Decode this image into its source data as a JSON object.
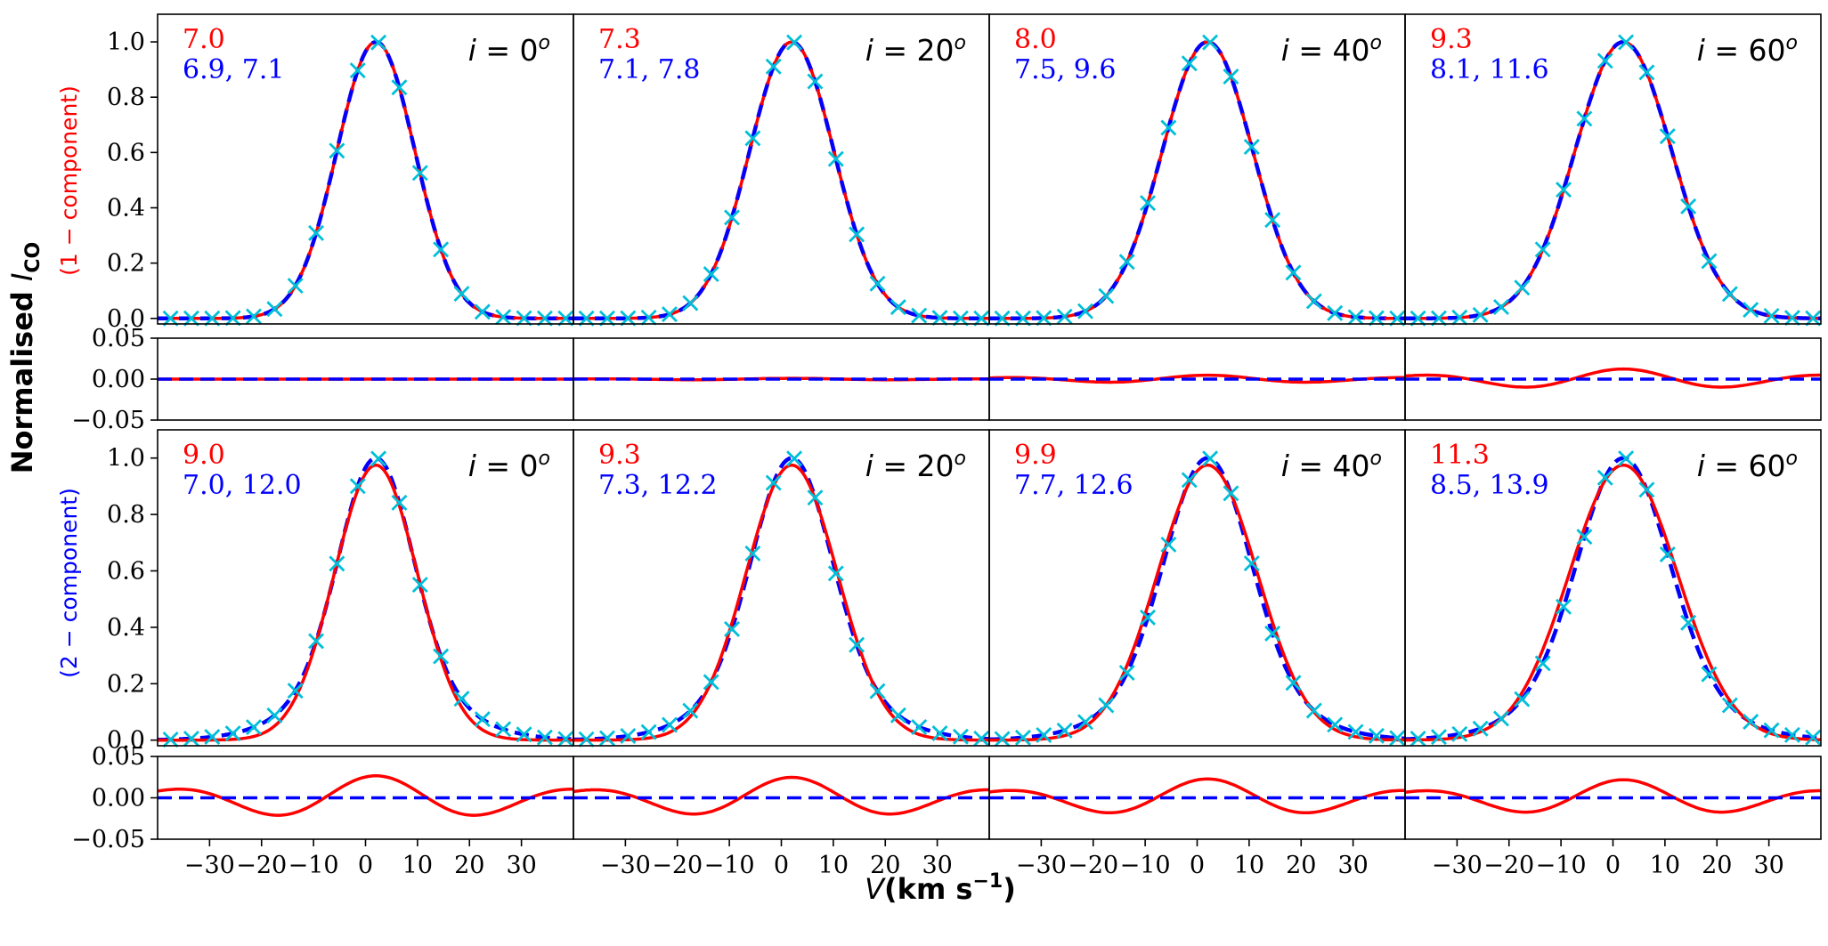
{
  "figure": {
    "ylabel": "Normalised I_CO",
    "ylabel_main": "Normalised ",
    "ylabel_var": "I",
    "ylabel_sub": "CO",
    "xlabel_var": "V",
    "xlabel_units": "(km s",
    "xlabel_exp": "−1",
    "xlabel_close": ")",
    "row_label_top": "(1 − component)",
    "row_label_bottom": "(2 − component)",
    "colors": {
      "red": "#ff0000",
      "blue": "#0000ff",
      "cyan": "#00bfd8",
      "axis": "#000000"
    }
  },
  "chart_data": {
    "type": "line",
    "layout": "4 rows x 4 columns, shared x-axis",
    "xlim": [
      -40,
      40
    ],
    "xticks": [
      -30,
      -20,
      -10,
      0,
      10,
      20,
      30
    ],
    "profile_ylim": [
      -0.02,
      1.1
    ],
    "profile_yticks": [
      "0.0",
      "0.2",
      "0.4",
      "0.6",
      "0.8",
      "1.0"
    ],
    "residual_ylim": [
      -0.05,
      0.05
    ],
    "residual_yticks": [
      "0.05",
      "0.00",
      "−0.05"
    ],
    "line_center": 2,
    "series": [
      {
        "name": "data",
        "marker": "x",
        "color": "#00bfd8"
      },
      {
        "name": "1-component fit",
        "style": "solid",
        "color": "#ff0000"
      },
      {
        "name": "2-component fit",
        "style": "dashed",
        "color": "#0000ff"
      }
    ],
    "columns": [
      {
        "inclination": "0",
        "one_comp": {
          "red": "7.0",
          "blue": "6.9,  7.1"
        },
        "two_comp": {
          "red": "9.0",
          "blue": "7.0, 12.0"
        },
        "one_comp_residual_amp": 0.0,
        "two_comp_residual_amp": 0.028
      },
      {
        "inclination": "20",
        "one_comp": {
          "red": "7.3",
          "blue": "7.1,  7.8"
        },
        "two_comp": {
          "red": "9.3",
          "blue": "7.3, 12.2"
        },
        "one_comp_residual_amp": 0.001,
        "two_comp_residual_amp": 0.026
      },
      {
        "inclination": "40",
        "one_comp": {
          "red": "8.0",
          "blue": "7.5,  9.6"
        },
        "two_comp": {
          "red": "9.9",
          "blue": "7.7, 12.6"
        },
        "one_comp_residual_amp": 0.005,
        "two_comp_residual_amp": 0.024
      },
      {
        "inclination": "60",
        "one_comp": {
          "red": "9.3",
          "blue": "8.1, 11.6"
        },
        "two_comp": {
          "red": "11.3",
          "blue": "8.5, 13.9"
        },
        "one_comp_residual_amp": 0.013,
        "two_comp_residual_amp": 0.023
      }
    ]
  }
}
